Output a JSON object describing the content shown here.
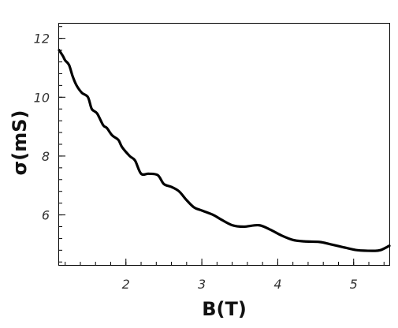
{
  "chart_data": {
    "type": "line",
    "title": "",
    "xlabel": "B(T)",
    "ylabel": "σ(mS)",
    "xlim": [
      1.12,
      5.47
    ],
    "ylim": [
      4.3,
      12.5
    ],
    "x_ticks": [
      2,
      3,
      4,
      5
    ],
    "y_ticks": [
      6,
      8,
      10,
      12
    ],
    "x_minor_step": 0.2,
    "y_minor_step": 0.4,
    "grid": false,
    "legend": "none",
    "line_color": "#000000",
    "series": [
      {
        "x": [
          1.12,
          1.17,
          1.2,
          1.25,
          1.3,
          1.35,
          1.42,
          1.5,
          1.55,
          1.62,
          1.7,
          1.75,
          1.82,
          1.9,
          1.95,
          2.05,
          2.12,
          2.2,
          2.3,
          2.42,
          2.5,
          2.6,
          2.7,
          2.8,
          2.9,
          3.0,
          3.15,
          3.25,
          3.4,
          3.55,
          3.75,
          3.9,
          4.05,
          4.2,
          4.35,
          4.55,
          4.7,
          4.9,
          5.05,
          5.25,
          5.35,
          5.47
        ],
        "y": [
          11.6,
          11.4,
          11.25,
          11.1,
          10.7,
          10.4,
          10.15,
          10.0,
          9.6,
          9.45,
          9.05,
          8.95,
          8.7,
          8.55,
          8.3,
          8.0,
          7.85,
          7.4,
          7.4,
          7.35,
          7.05,
          6.95,
          6.8,
          6.5,
          6.25,
          6.15,
          6.0,
          5.85,
          5.65,
          5.6,
          5.65,
          5.5,
          5.3,
          5.15,
          5.1,
          5.08,
          5.0,
          4.88,
          4.8,
          4.78,
          4.8,
          4.95
        ]
      }
    ]
  }
}
